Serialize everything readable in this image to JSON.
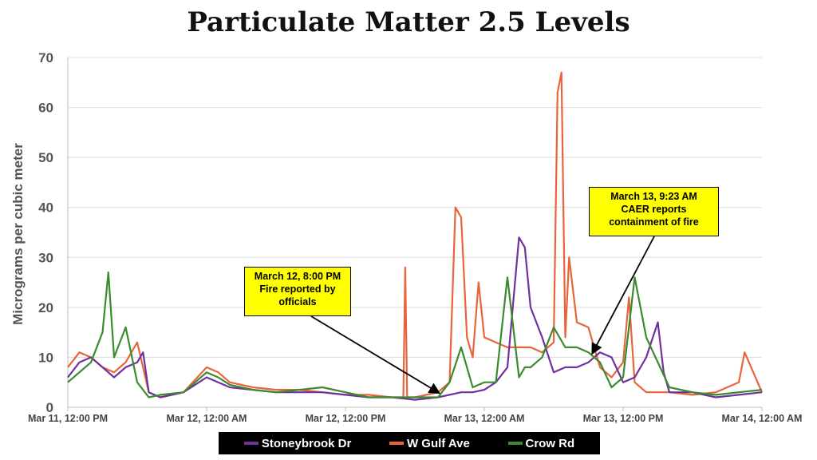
{
  "chart_data": {
    "type": "line",
    "title": "Particulate Matter 2.5 Levels",
    "ylabel": "Micrograms per cubic meter",
    "xlabel": "",
    "ylim": [
      0,
      70
    ],
    "xlim": [
      "2023-03-11T12:00",
      "2023-03-14T00:00"
    ],
    "yticks": [
      0,
      10,
      20,
      30,
      40,
      50,
      60,
      70
    ],
    "xtick_labels": [
      {
        "x": "2023-03-11T12:00",
        "label": "Mar 11, 12:00 PM"
      },
      {
        "x": "2023-03-12T00:00",
        "label": "Mar 12, 12:00 AM"
      },
      {
        "x": "2023-03-12T12:00",
        "label": "Mar 12, 12:00 PM"
      },
      {
        "x": "2023-03-13T00:00",
        "label": "Mar 13, 12:00 AM"
      },
      {
        "x": "2023-03-13T12:00",
        "label": "Mar 13, 12:00 PM"
      },
      {
        "x": "2023-03-14T00:00",
        "label": "Mar 14, 12:00 AM"
      }
    ],
    "grid": true,
    "legend_position": "bottom",
    "series": [
      {
        "name": "Stoneybrook Dr",
        "color": "#7030a0",
        "x": [
          "2023-03-11T12:00",
          "2023-03-11T13:00",
          "2023-03-11T14:00",
          "2023-03-11T15:00",
          "2023-03-11T16:00",
          "2023-03-11T17:00",
          "2023-03-11T18:00",
          "2023-03-11T18:30",
          "2023-03-11T19:00",
          "2023-03-11T20:00",
          "2023-03-11T21:00",
          "2023-03-11T22:00",
          "2023-03-12T00:00",
          "2023-03-12T01:00",
          "2023-03-12T02:00",
          "2023-03-12T04:00",
          "2023-03-12T06:00",
          "2023-03-12T08:00",
          "2023-03-12T10:00",
          "2023-03-12T12:00",
          "2023-03-12T14:00",
          "2023-03-12T16:00",
          "2023-03-12T18:00",
          "2023-03-12T20:00",
          "2023-03-12T22:00",
          "2023-03-12T23:00",
          "2023-03-13T00:00",
          "2023-03-13T01:00",
          "2023-03-13T02:00",
          "2023-03-13T03:00",
          "2023-03-13T03:30",
          "2023-03-13T04:00",
          "2023-03-13T05:00",
          "2023-03-13T06:00",
          "2023-03-13T07:00",
          "2023-03-13T08:00",
          "2023-03-13T09:00",
          "2023-03-13T10:00",
          "2023-03-13T11:00",
          "2023-03-13T12:00",
          "2023-03-13T13:00",
          "2023-03-13T14:00",
          "2023-03-13T15:00",
          "2023-03-13T15:30",
          "2023-03-13T16:00",
          "2023-03-13T17:00",
          "2023-03-13T18:00",
          "2023-03-13T20:00",
          "2023-03-13T22:00",
          "2023-03-14T00:00"
        ],
        "y": [
          6,
          9,
          10,
          8,
          6,
          8,
          9,
          11,
          3,
          2,
          2.5,
          3,
          6,
          5,
          4,
          3.5,
          3,
          3,
          3,
          2.5,
          2,
          2,
          1.5,
          2,
          3,
          3,
          3.5,
          5,
          8,
          34,
          32,
          20,
          14,
          7,
          8,
          8,
          9,
          11,
          10,
          5,
          6,
          10,
          17,
          7,
          3,
          3,
          3,
          2,
          2.5,
          3
        ]
      },
      {
        "name": "W Gulf Ave",
        "color": "#e8643a",
        "x": [
          "2023-03-11T12:00",
          "2023-03-11T13:00",
          "2023-03-11T14:00",
          "2023-03-11T15:00",
          "2023-03-11T16:00",
          "2023-03-11T17:00",
          "2023-03-11T18:00",
          "2023-03-11T19:00",
          "2023-03-11T20:00",
          "2023-03-11T22:00",
          "2023-03-12T00:00",
          "2023-03-12T01:00",
          "2023-03-12T02:00",
          "2023-03-12T04:00",
          "2023-03-12T06:00",
          "2023-03-12T08:00",
          "2023-03-12T10:00",
          "2023-03-12T12:00",
          "2023-03-12T14:00",
          "2023-03-12T16:00",
          "2023-03-12T17:00",
          "2023-03-12T17:10",
          "2023-03-12T17:20",
          "2023-03-12T18:00",
          "2023-03-12T20:00",
          "2023-03-12T21:00",
          "2023-03-12T21:30",
          "2023-03-12T22:00",
          "2023-03-12T22:30",
          "2023-03-12T23:00",
          "2023-03-12T23:30",
          "2023-03-13T00:00",
          "2023-03-13T01:00",
          "2023-03-13T02:00",
          "2023-03-13T03:00",
          "2023-03-13T04:00",
          "2023-03-13T05:00",
          "2023-03-13T06:00",
          "2023-03-13T06:20",
          "2023-03-13T06:40",
          "2023-03-13T07:00",
          "2023-03-13T07:20",
          "2023-03-13T08:00",
          "2023-03-13T09:00",
          "2023-03-13T10:00",
          "2023-03-13T11:00",
          "2023-03-13T12:00",
          "2023-03-13T12:30",
          "2023-03-13T13:00",
          "2023-03-13T14:00",
          "2023-03-13T16:00",
          "2023-03-13T18:00",
          "2023-03-13T20:00",
          "2023-03-13T22:00",
          "2023-03-13T22:30",
          "2023-03-14T00:00"
        ],
        "y": [
          8,
          11,
          10,
          8,
          7,
          9,
          13,
          3,
          2,
          3,
          8,
          7,
          5,
          4,
          3.5,
          3.5,
          3,
          2.5,
          2.5,
          2,
          2,
          28,
          2,
          2,
          3,
          5,
          40,
          38,
          14,
          10,
          25,
          14,
          13,
          12,
          12,
          12,
          11,
          13,
          63,
          67,
          14,
          30,
          17,
          16,
          8,
          6,
          9,
          22,
          5,
          3,
          3,
          2.5,
          3,
          5,
          11,
          3
        ]
      },
      {
        "name": "Crow Rd",
        "color": "#3a8a2e",
        "x": [
          "2023-03-11T12:00",
          "2023-03-11T13:00",
          "2023-03-11T14:00",
          "2023-03-11T15:00",
          "2023-03-11T15:30",
          "2023-03-11T16:00",
          "2023-03-11T17:00",
          "2023-03-11T18:00",
          "2023-03-11T19:00",
          "2023-03-11T20:00",
          "2023-03-11T22:00",
          "2023-03-12T00:00",
          "2023-03-12T01:00",
          "2023-03-12T02:00",
          "2023-03-12T04:00",
          "2023-03-12T06:00",
          "2023-03-12T08:00",
          "2023-03-12T10:00",
          "2023-03-12T12:00",
          "2023-03-12T14:00",
          "2023-03-12T16:00",
          "2023-03-12T18:00",
          "2023-03-12T20:00",
          "2023-03-12T21:00",
          "2023-03-12T22:00",
          "2023-03-12T23:00",
          "2023-03-13T00:00",
          "2023-03-13T01:00",
          "2023-03-13T02:00",
          "2023-03-13T03:00",
          "2023-03-13T03:30",
          "2023-03-13T04:00",
          "2023-03-13T05:00",
          "2023-03-13T06:00",
          "2023-03-13T07:00",
          "2023-03-13T08:00",
          "2023-03-13T09:00",
          "2023-03-13T10:00",
          "2023-03-13T11:00",
          "2023-03-13T12:00",
          "2023-03-13T13:00",
          "2023-03-13T14:00",
          "2023-03-13T16:00",
          "2023-03-13T18:00",
          "2023-03-13T20:00",
          "2023-03-13T22:00",
          "2023-03-14T00:00"
        ],
        "y": [
          5,
          7,
          9,
          15,
          27,
          10,
          16,
          5,
          2,
          2.5,
          3,
          7,
          6,
          4.5,
          3.5,
          3,
          3.5,
          4,
          3,
          2,
          2,
          2,
          2,
          5,
          12,
          4,
          5,
          5,
          26,
          6,
          8,
          8,
          10,
          16,
          12,
          12,
          11,
          9,
          4,
          6,
          26,
          14,
          4,
          3,
          2.5,
          3,
          3.5
        ]
      }
    ],
    "annotations": [
      {
        "x": "2023-03-12T20:00",
        "y": 3,
        "lines": [
          "March 12, 8:00 PM",
          "Fire reported by",
          "officials"
        ]
      },
      {
        "x": "2023-03-13T09:23",
        "y": 11,
        "lines": [
          "March 13, 9:23 AM",
          "CAER reports",
          "containment of fire"
        ]
      }
    ]
  }
}
